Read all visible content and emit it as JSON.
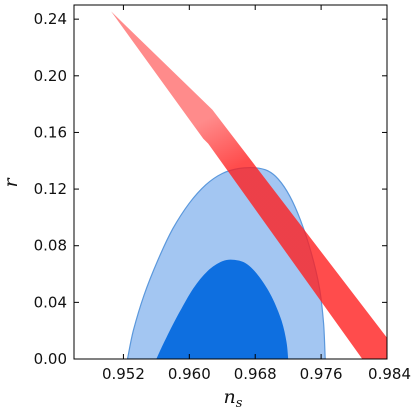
{
  "chart_data": {
    "type": "area",
    "title": "",
    "xlabel": "n",
    "xlabel_sub": "s",
    "ylabel": "r",
    "xlim": [
      0.946,
      0.984
    ],
    "ylim": [
      0.0,
      0.25
    ],
    "xticks": [
      0.952,
      0.96,
      0.968,
      0.976,
      0.984
    ],
    "xtick_labels": [
      "0.952",
      "0.960",
      "0.968",
      "0.976",
      "0.984"
    ],
    "yticks": [
      0.0,
      0.04,
      0.08,
      0.12,
      0.16,
      0.2,
      0.24
    ],
    "ytick_labels": [
      "0.00",
      "0.04",
      "0.08",
      "0.12",
      "0.16",
      "0.20",
      "0.24"
    ],
    "grid": false,
    "legend": "none",
    "series": [
      {
        "kind": "confidence-region-95",
        "color": "#a3c6f2",
        "edge": "#5b98dc",
        "points": [
          [
            0.9525,
            0.0
          ],
          [
            0.9532,
            0.02
          ],
          [
            0.9545,
            0.045
          ],
          [
            0.9562,
            0.07
          ],
          [
            0.958,
            0.092
          ],
          [
            0.96,
            0.11
          ],
          [
            0.962,
            0.123
          ],
          [
            0.964,
            0.131
          ],
          [
            0.966,
            0.1345
          ],
          [
            0.968,
            0.135
          ],
          [
            0.9695,
            0.133
          ],
          [
            0.9708,
            0.127
          ],
          [
            0.9722,
            0.115
          ],
          [
            0.9735,
            0.098
          ],
          [
            0.9748,
            0.075
          ],
          [
            0.9758,
            0.05
          ],
          [
            0.9763,
            0.025
          ],
          [
            0.9765,
            0.0
          ]
        ]
      },
      {
        "kind": "confidence-region-68",
        "color": "#0e6fe0",
        "points": [
          [
            0.956,
            0.0
          ],
          [
            0.9572,
            0.015
          ],
          [
            0.9588,
            0.033
          ],
          [
            0.9605,
            0.05
          ],
          [
            0.9622,
            0.062
          ],
          [
            0.964,
            0.069
          ],
          [
            0.9655,
            0.07
          ],
          [
            0.967,
            0.067
          ],
          [
            0.9685,
            0.058
          ],
          [
            0.97,
            0.044
          ],
          [
            0.9712,
            0.027
          ],
          [
            0.9718,
            0.012
          ],
          [
            0.972,
            0.0
          ]
        ]
      },
      {
        "kind": "model-prediction-band",
        "color": "#ff2a2a",
        "points": [
          [
            0.9505,
            0.2455
          ],
          [
            0.9628,
            0.176
          ],
          [
            0.984,
            0.015
          ],
          [
            0.984,
            0.0
          ],
          [
            0.981,
            0.0
          ],
          [
            0.9623,
            0.152
          ],
          [
            0.9617,
            0.1555
          ]
        ]
      }
    ]
  }
}
